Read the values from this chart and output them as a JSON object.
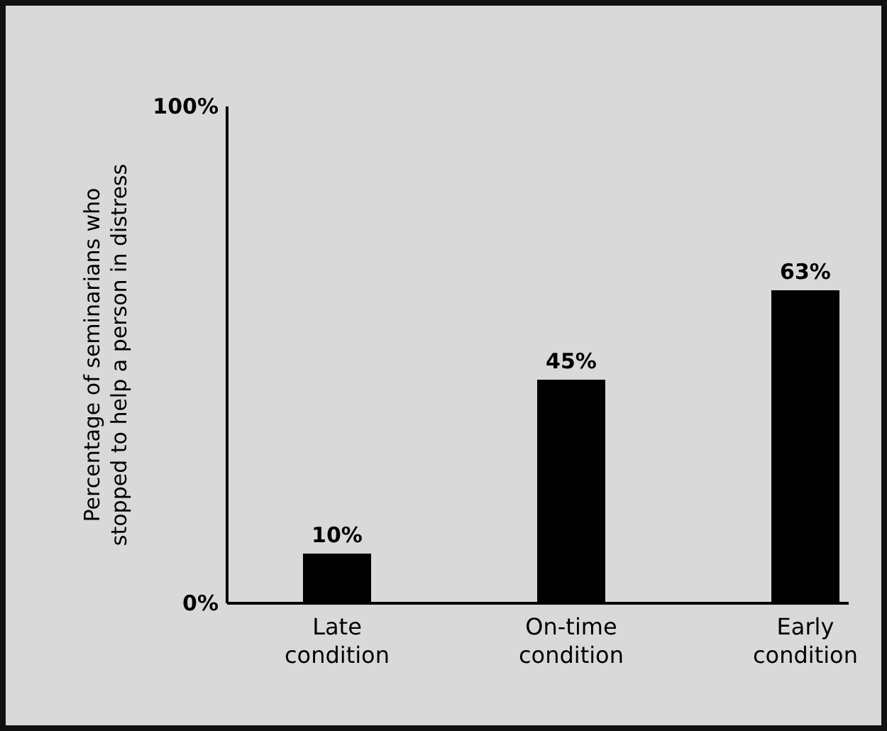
{
  "chart_data": {
    "type": "bar",
    "ylabel": "Percentage of seminarians who stopped to help a person in distress",
    "categories": [
      "Late condition",
      "On-time condition",
      "Early condition"
    ],
    "values": [
      10,
      45,
      63
    ],
    "color": "#000000",
    "value_labels": [
      "10%",
      "45%",
      "63%"
    ],
    "ylim": [
      0,
      100
    ],
    "yticks": [
      {
        "value": 0,
        "label": "0%"
      },
      {
        "value": 100,
        "label": "100%"
      }
    ],
    "grid": false
  }
}
